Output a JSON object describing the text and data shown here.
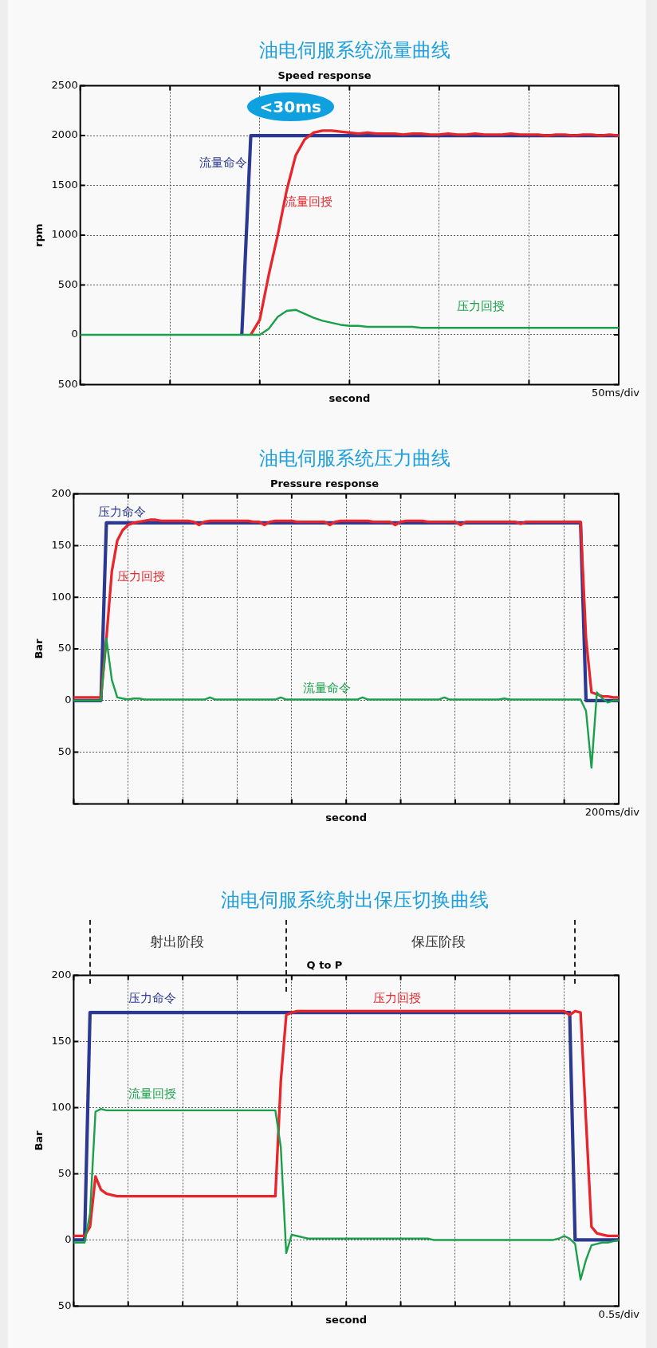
{
  "chart_data": [
    {
      "type": "line",
      "title": "油电伺服系统流量曲线",
      "subtitle": "Speed response",
      "xlabel": "second",
      "ylabel": "rpm",
      "categories": [
        null,
        null,
        null,
        null,
        null,
        null,
        null,
        null,
        null,
        null,
        null,
        null,
        null,
        null,
        null,
        null,
        null,
        null,
        null,
        null,
        null,
        null,
        null,
        null,
        null,
        null,
        null,
        null,
        null,
        null,
        null,
        null,
        null,
        null,
        null,
        null,
        null,
        null,
        null,
        null,
        null,
        null,
        null,
        null,
        null,
        null,
        null,
        null,
        null,
        null,
        null,
        null,
        null,
        null,
        null,
        null,
        null,
        null,
        null,
        null,
        null
      ],
      "series": [
        {
          "name": "流量命令",
          "color": "#2b3990",
          "values": [
            null,
            null,
            null,
            null,
            null,
            null,
            null,
            null,
            null,
            null,
            null,
            null,
            null,
            null,
            null,
            null,
            null,
            null,
            0,
            2000,
            2000,
            2000,
            2000,
            2000,
            2000,
            2000,
            2000,
            2000,
            2000,
            2000,
            2000,
            2000,
            2000,
            2000,
            2000,
            2000,
            2000,
            2000,
            2000,
            2000,
            2000,
            2000,
            2000,
            2000,
            2000,
            2000,
            2000,
            2000,
            2000,
            2000,
            2000,
            2000,
            2000,
            2000,
            2000,
            2000,
            2000,
            2000,
            2000,
            2000,
            2000
          ]
        },
        {
          "name": "流量回授",
          "color": "#e8252a",
          "values": [
            null,
            null,
            null,
            null,
            null,
            null,
            null,
            null,
            null,
            null,
            null,
            null,
            null,
            null,
            null,
            null,
            null,
            null,
            null,
            0,
            150,
            600,
            1000,
            1450,
            1800,
            1960,
            2030,
            2050,
            2050,
            2040,
            2030,
            2020,
            2030,
            2020,
            2020,
            2020,
            2010,
            2020,
            2020,
            2010,
            2010,
            2020,
            2010,
            2010,
            2020,
            2010,
            2010,
            2010,
            2020,
            2010,
            2010,
            2010,
            2000,
            2010,
            2010,
            2000,
            2010,
            2010,
            2000,
            2010,
            2000
          ]
        },
        {
          "name": "压力回授",
          "color": "#1aa04a",
          "values": [
            0,
            0,
            0,
            0,
            0,
            0,
            0,
            0,
            0,
            0,
            0,
            0,
            0,
            0,
            0,
            0,
            0,
            0,
            0,
            0,
            0,
            60,
            180,
            240,
            250,
            210,
            170,
            140,
            120,
            100,
            90,
            90,
            80,
            80,
            80,
            80,
            80,
            80,
            70,
            70,
            70,
            70,
            70,
            70,
            70,
            70,
            70,
            70,
            70,
            70,
            70,
            70,
            70,
            70,
            70,
            70,
            70,
            70,
            70,
            70,
            70
          ]
        }
      ],
      "ylim": [
        -500,
        2500
      ],
      "yticks": [
        {
          "value": -500,
          "label": "500"
        },
        0,
        500,
        1000,
        1500,
        2000,
        2500
      ],
      "grid": true,
      "legend": false,
      "tick_labels": "y",
      "marker": "none",
      "line_style": "solid",
      "annotations": [
        "50ms/div",
        "<30ms"
      ]
    },
    {
      "type": "line",
      "title": "油电伺服系统压力曲线",
      "subtitle": "Pressure response",
      "xlabel": "second",
      "ylabel": "Bar",
      "categories": [
        null,
        null,
        null,
        null,
        null,
        null,
        null,
        null,
        null,
        null,
        null,
        null,
        null,
        null,
        null,
        null,
        null,
        null,
        null,
        null,
        null,
        null,
        null,
        null,
        null,
        null,
        null,
        null,
        null,
        null,
        null,
        null,
        null,
        null,
        null,
        null,
        null,
        null,
        null,
        null,
        null,
        null,
        null,
        null,
        null,
        null,
        null,
        null,
        null,
        null,
        null,
        null,
        null,
        null,
        null,
        null,
        null,
        null,
        null,
        null,
        null,
        null,
        null,
        null,
        null,
        null,
        null,
        null,
        null,
        null,
        null,
        null,
        null,
        null,
        null,
        null,
        null,
        null,
        null,
        null,
        null,
        null,
        null,
        null,
        null,
        null,
        null,
        null,
        null,
        null,
        null,
        null,
        null,
        null,
        null,
        null,
        null,
        null,
        null,
        null,
        null
      ],
      "series": [
        {
          "name": "压力命令",
          "color": "#2b3990",
          "values": [
            0,
            0,
            0,
            0,
            0,
            0,
            172,
            172,
            172,
            172,
            172,
            172,
            172,
            172,
            172,
            172,
            172,
            172,
            172,
            172,
            172,
            172,
            172,
            172,
            172,
            172,
            172,
            172,
            172,
            172,
            172,
            172,
            172,
            172,
            172,
            172,
            172,
            172,
            172,
            172,
            172,
            172,
            172,
            172,
            172,
            172,
            172,
            172,
            172,
            172,
            172,
            172,
            172,
            172,
            172,
            172,
            172,
            172,
            172,
            172,
            172,
            172,
            172,
            172,
            172,
            172,
            172,
            172,
            172,
            172,
            172,
            172,
            172,
            172,
            172,
            172,
            172,
            172,
            172,
            172,
            172,
            172,
            172,
            172,
            172,
            172,
            172,
            172,
            172,
            172,
            172,
            172,
            172,
            172,
            0,
            0,
            0,
            0,
            0,
            0,
            0
          ]
        },
        {
          "name": "压力回授",
          "color": "#e8252a",
          "values": [
            3,
            3,
            3,
            3,
            3,
            3,
            60,
            125,
            155,
            165,
            170,
            172,
            173,
            174,
            175,
            175,
            174,
            174,
            174,
            174,
            174,
            174,
            173,
            170,
            173,
            174,
            174,
            174,
            174,
            174,
            174,
            174,
            174,
            173,
            173,
            170,
            173,
            174,
            174,
            174,
            174,
            173,
            173,
            173,
            173,
            173,
            173,
            170,
            173,
            174,
            174,
            174,
            174,
            174,
            174,
            173,
            173,
            173,
            173,
            170,
            173,
            174,
            174,
            174,
            174,
            173,
            173,
            173,
            173,
            173,
            173,
            170,
            173,
            173,
            173,
            173,
            173,
            173,
            173,
            173,
            173,
            173,
            171,
            173,
            173,
            173,
            173,
            173,
            173,
            173,
            173,
            173,
            173,
            173,
            60,
            8,
            6,
            4,
            4,
            3,
            3
          ]
        },
        {
          "name": "流量命令",
          "color": "#1aa04a",
          "values": [
            0,
            0,
            0,
            0,
            0,
            0,
            60,
            20,
            3,
            2,
            1,
            2,
            2,
            1,
            1,
            1,
            1,
            1,
            1,
            1,
            1,
            1,
            1,
            1,
            1,
            3,
            1,
            1,
            1,
            1,
            1,
            1,
            1,
            1,
            1,
            1,
            1,
            1,
            3,
            1,
            1,
            1,
            1,
            1,
            1,
            1,
            1,
            1,
            1,
            1,
            1,
            1,
            1,
            3,
            1,
            1,
            1,
            1,
            1,
            1,
            1,
            1,
            1,
            1,
            1,
            1,
            1,
            1,
            3,
            1,
            1,
            1,
            1,
            1,
            1,
            1,
            1,
            1,
            1,
            2,
            1,
            1,
            1,
            1,
            1,
            1,
            1,
            1,
            1,
            1,
            1,
            1,
            1,
            1,
            -10,
            -65,
            8,
            2,
            -2,
            0,
            0
          ]
        }
      ],
      "ylim": [
        -100,
        200
      ],
      "yticks": [
        {
          "value": -100,
          "label": null
        },
        {
          "value": -50,
          "label": "50"
        },
        0,
        50,
        100,
        150,
        200
      ],
      "grid": true,
      "legend": false,
      "tick_labels": "y",
      "marker": "none",
      "line_style": "solid",
      "annotations": [
        "200ms/div"
      ]
    },
    {
      "type": "line",
      "title": "油电伺服系统射出保压切换曲线",
      "subtitle": "Q to P",
      "xlabel": "second",
      "ylabel": "Bar",
      "categories": [
        null,
        null,
        null,
        null,
        null,
        null,
        null,
        null,
        null,
        null,
        null,
        null,
        null,
        null,
        null,
        null,
        null,
        null,
        null,
        null,
        null,
        null,
        null,
        null,
        null,
        null,
        null,
        null,
        null,
        null,
        null,
        null,
        null,
        null,
        null,
        null,
        null,
        null,
        null,
        null,
        null,
        null,
        null,
        null,
        null,
        null,
        null,
        null,
        null,
        null,
        null,
        null,
        null,
        null,
        null,
        null,
        null,
        null,
        null,
        null,
        null,
        null,
        null,
        null,
        null,
        null,
        null,
        null,
        null,
        null,
        null,
        null,
        null,
        null,
        null,
        null,
        null,
        null,
        null,
        null,
        null,
        null,
        null,
        null,
        null,
        null,
        null,
        null,
        null,
        null,
        null,
        null,
        null,
        null,
        null,
        null,
        null,
        null,
        null,
        null,
        null
      ],
      "series": [
        {
          "name": "压力命令",
          "color": "#2b3990",
          "values": [
            0,
            0,
            0,
            172,
            172,
            172,
            172,
            172,
            172,
            172,
            172,
            172,
            172,
            172,
            172,
            172,
            172,
            172,
            172,
            172,
            172,
            172,
            172,
            172,
            172,
            172,
            172,
            172,
            172,
            172,
            172,
            172,
            172,
            172,
            172,
            172,
            172,
            172,
            172,
            172,
            172,
            172,
            172,
            172,
            172,
            172,
            172,
            172,
            172,
            172,
            172,
            172,
            172,
            172,
            172,
            172,
            172,
            172,
            172,
            172,
            172,
            172,
            172,
            172,
            172,
            172,
            172,
            172,
            172,
            172,
            172,
            172,
            172,
            172,
            172,
            172,
            172,
            172,
            172,
            172,
            172,
            172,
            172,
            172,
            172,
            172,
            172,
            172,
            172,
            172,
            172,
            172,
            0,
            0,
            0,
            0,
            0,
            0,
            0,
            0,
            0
          ]
        },
        {
          "name": "压力回授",
          "color": "#e8252a",
          "values": [
            3,
            3,
            3,
            10,
            48,
            38,
            35,
            34,
            33,
            33,
            33,
            33,
            33,
            33,
            33,
            33,
            33,
            33,
            33,
            33,
            33,
            33,
            33,
            33,
            33,
            33,
            33,
            33,
            33,
            33,
            33,
            33,
            33,
            33,
            33,
            33,
            33,
            33,
            120,
            170,
            172,
            173,
            173,
            173,
            173,
            173,
            173,
            173,
            173,
            173,
            173,
            173,
            173,
            173,
            173,
            173,
            173,
            173,
            173,
            173,
            173,
            173,
            173,
            173,
            173,
            173,
            173,
            173,
            173,
            173,
            173,
            173,
            173,
            173,
            173,
            173,
            173,
            173,
            173,
            173,
            173,
            173,
            173,
            173,
            173,
            173,
            173,
            173,
            173,
            173,
            173,
            170,
            173,
            172,
            90,
            10,
            5,
            4,
            3,
            3,
            3
          ]
        },
        {
          "name": "流量回授",
          "color": "#1aa04a",
          "values": [
            -2,
            -2,
            -2,
            20,
            97,
            99,
            98,
            98,
            98,
            98,
            98,
            98,
            98,
            98,
            98,
            98,
            98,
            98,
            98,
            98,
            98,
            98,
            98,
            98,
            98,
            98,
            98,
            98,
            98,
            98,
            98,
            98,
            98,
            98,
            98,
            98,
            98,
            98,
            70,
            -10,
            4,
            3,
            2,
            1,
            1,
            1,
            1,
            1,
            1,
            1,
            1,
            1,
            1,
            1,
            1,
            1,
            1,
            1,
            1,
            1,
            1,
            1,
            1,
            1,
            1,
            1,
            0,
            0,
            0,
            0,
            0,
            0,
            0,
            0,
            0,
            0,
            0,
            0,
            0,
            0,
            0,
            0,
            0,
            0,
            0,
            0,
            0,
            0,
            0,
            1,
            3,
            1,
            -3,
            -30,
            -15,
            -4,
            -3,
            -2,
            -2,
            -1,
            0
          ]
        }
      ],
      "ylim": [
        -50,
        200
      ],
      "yticks": [
        {
          "value": -50,
          "label": "50"
        },
        0,
        50,
        100,
        150,
        200
      ],
      "grid": true,
      "legend": false,
      "tick_labels": "y",
      "marker": "none",
      "line_style": "solid",
      "annotations": [
        "0.5s/div",
        "射出阶段",
        "保压阶段"
      ]
    }
  ]
}
